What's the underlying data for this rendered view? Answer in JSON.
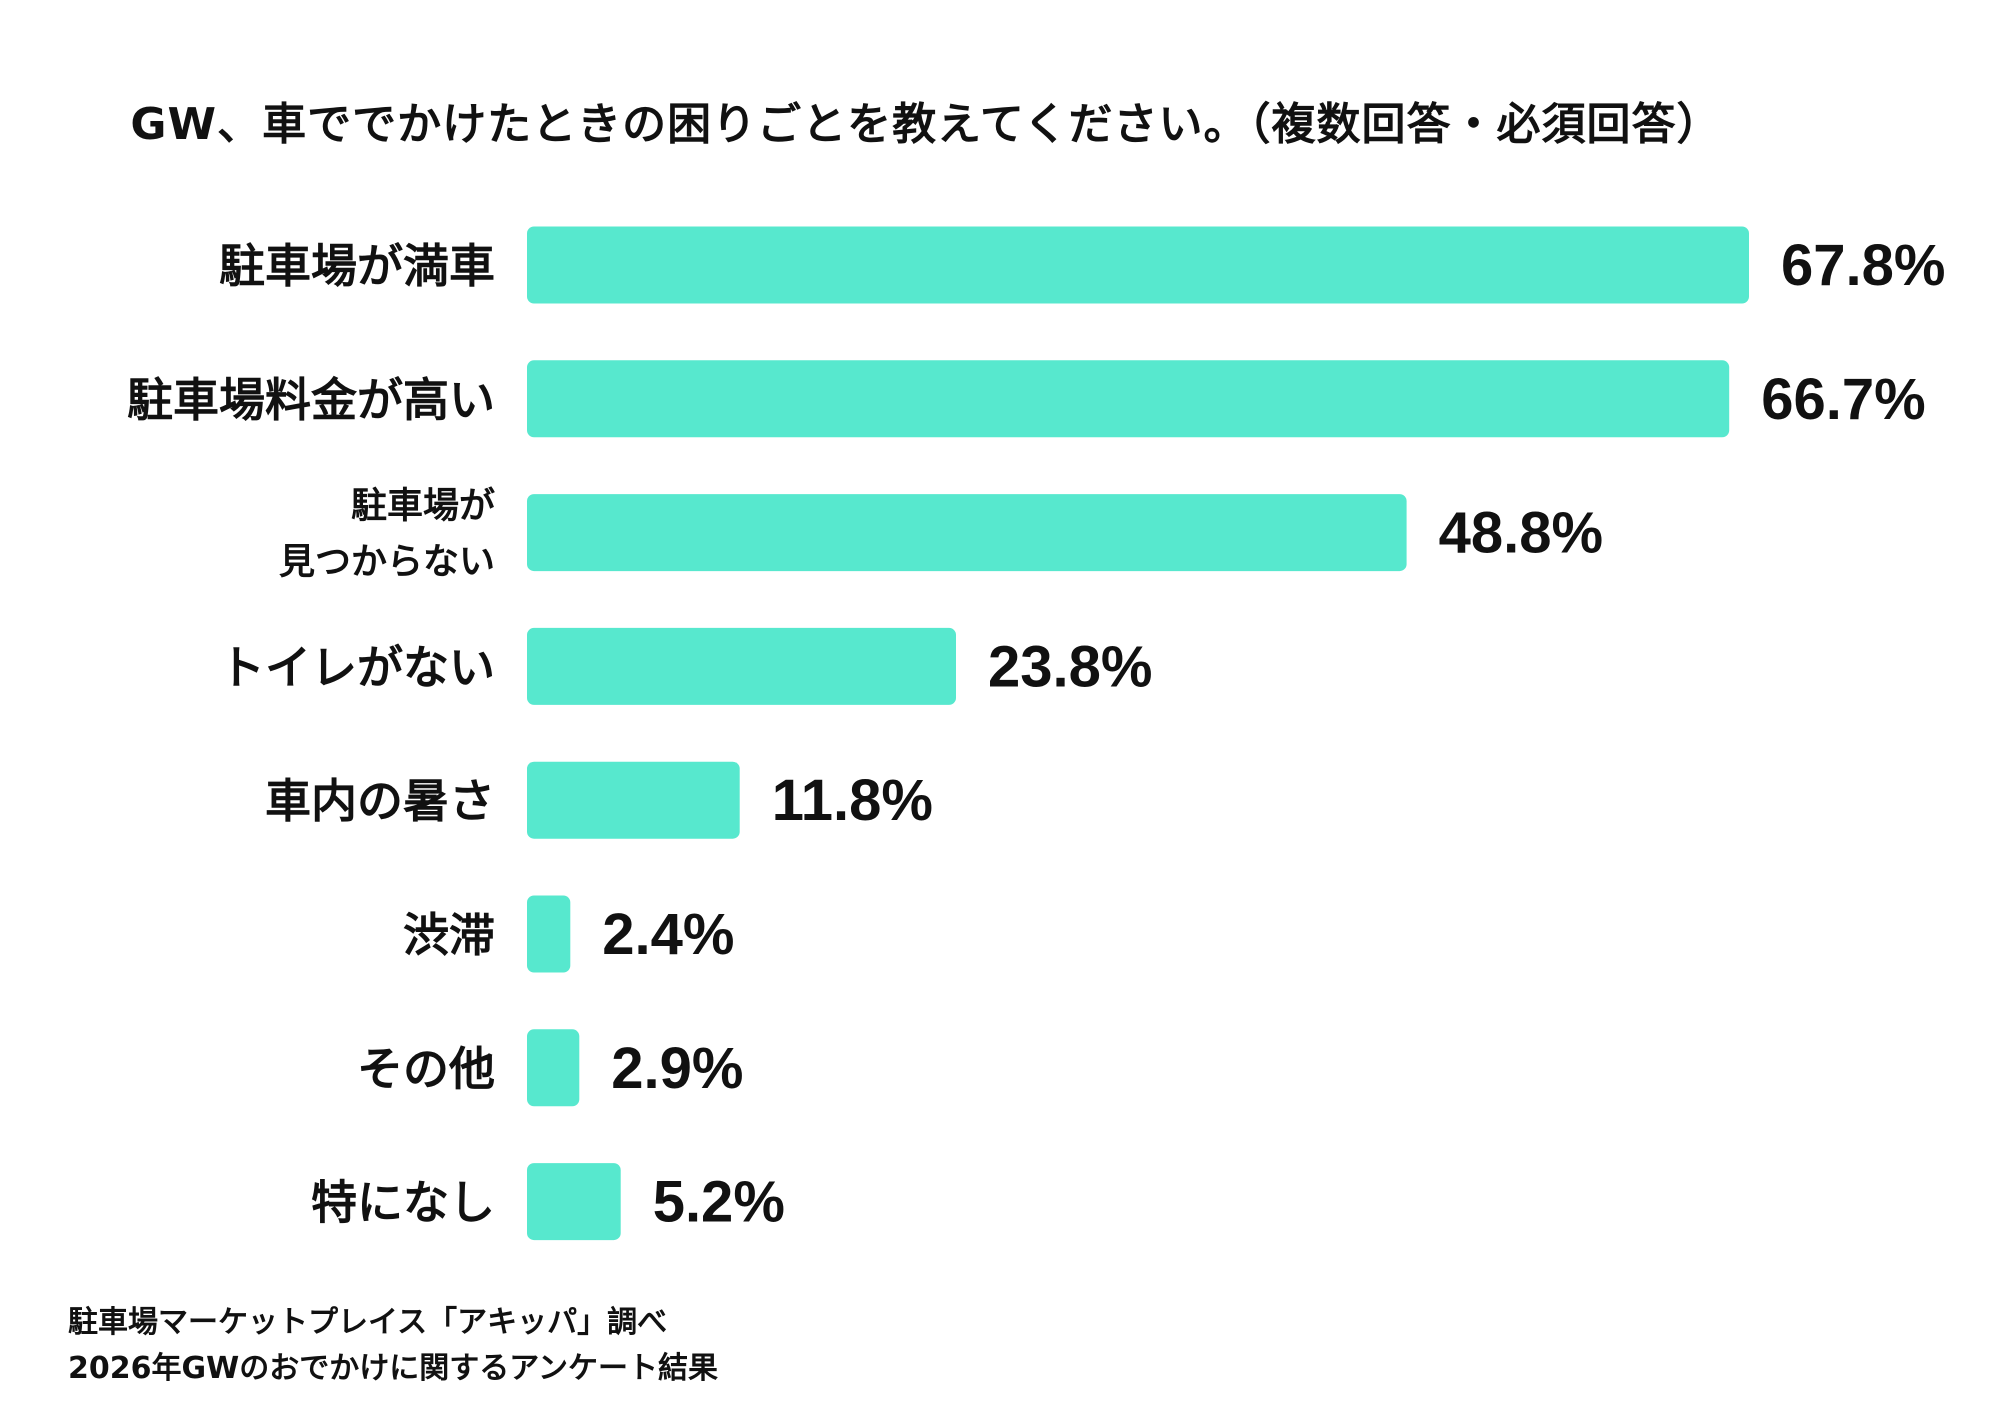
{
  "chart_data": {
    "type": "bar",
    "orientation": "horizontal",
    "title": "GW、車ででかけたときの困りごとを教えてください。（複数回答・必須回答）",
    "categories": [
      [
        "駐車場が満車"
      ],
      [
        "駐車場料金が高い"
      ],
      [
        "駐車場が",
        "見つからない"
      ],
      [
        "トイレがない"
      ],
      [
        "車内の暑さ"
      ],
      [
        "渋滞"
      ],
      [
        "その他"
      ],
      [
        "特になし"
      ]
    ],
    "values": [
      67.8,
      66.7,
      48.8,
      23.8,
      11.8,
      2.4,
      2.9,
      5.2
    ],
    "value_labels": [
      "67.8%",
      "66.7%",
      "48.8%",
      "23.8%",
      "11.8%",
      "2.4%",
      "2.9%",
      "5.2%"
    ],
    "unit": "%",
    "xlim": [
      0,
      67.8
    ],
    "bar_color": "#57E8CE",
    "grid": false,
    "legend": "none"
  },
  "footer": {
    "line1": "駐車場マーケットプレイス「アキッパ」調べ",
    "line2": "2026年GWのおでかけに関するアンケート結果"
  }
}
